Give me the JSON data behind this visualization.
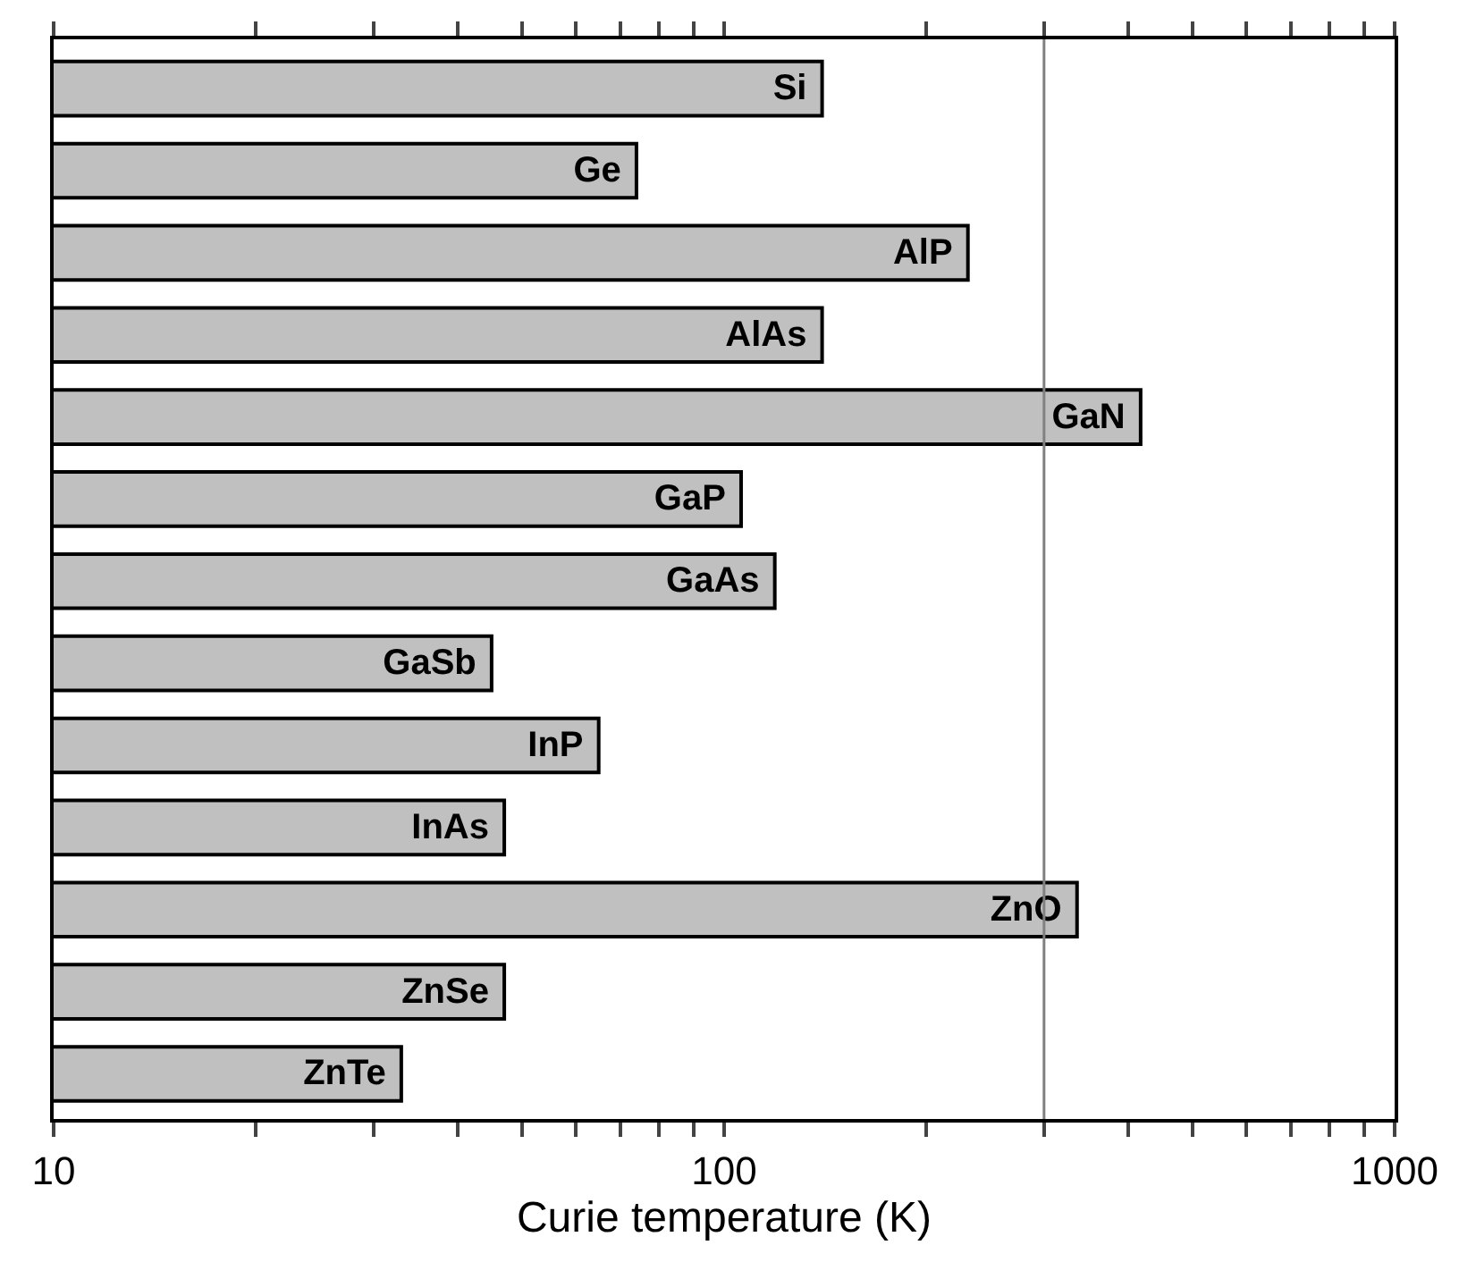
{
  "chart_data": {
    "type": "bar",
    "orientation": "horizontal",
    "xlabel": "Curie temperature (K)",
    "categories": [
      "Si",
      "Ge",
      "AlP",
      "AlAs",
      "GaN",
      "GaP",
      "GaAs",
      "GaSb",
      "InP",
      "InAs",
      "ZnO",
      "ZnSe",
      "ZnTe"
    ],
    "values": [
      140,
      74,
      231,
      140,
      418,
      106,
      119,
      45,
      65,
      47,
      336,
      47,
      33
    ],
    "color": "#c0c0c0",
    "log": "x",
    "xlim": [
      10,
      1000
    ],
    "xticks": [
      10,
      {
        "value": 20,
        "label": null
      },
      {
        "value": 30,
        "label": null
      },
      {
        "value": 40,
        "label": null
      },
      {
        "value": 50,
        "label": null
      },
      {
        "value": 60,
        "label": null
      },
      {
        "value": 70,
        "label": null
      },
      {
        "value": 80,
        "label": null
      },
      {
        "value": 90,
        "label": null
      },
      100,
      {
        "value": 200,
        "label": null
      },
      {
        "value": 300,
        "label": null
      },
      {
        "value": 400,
        "label": null
      },
      {
        "value": 500,
        "label": null
      },
      {
        "value": 600,
        "label": null
      },
      {
        "value": 700,
        "label": null
      },
      {
        "value": 800,
        "label": null
      },
      {
        "value": 900,
        "label": null
      },
      1000
    ],
    "ref_lines": [
      {
        "axis": "x",
        "value": 300,
        "color": "#808080"
      }
    ],
    "tick_labels": "x"
  }
}
